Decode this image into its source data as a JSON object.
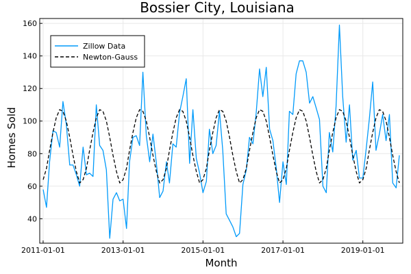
{
  "chart_data": {
    "type": "line",
    "title": "Bossier City, Louisiana",
    "xlabel": "Month",
    "ylabel": "Homes Sold",
    "x_ticks": [
      "2011-01-01",
      "2013-01-01",
      "2015-01-01",
      "2017-01-01",
      "2019-01-01"
    ],
    "y_ticks": [
      40,
      60,
      80,
      100,
      120,
      140,
      160
    ],
    "xlim": [
      "2010-12-01",
      "2020-01-01"
    ],
    "ylim": [
      25,
      163
    ],
    "grid": true,
    "legend_position": "top-left",
    "series": [
      {
        "name": "Zillow Data",
        "color": "#009AFA",
        "dash": "solid",
        "points": [
          [
            "2011-01-01",
            58
          ],
          [
            "2011-02-01",
            47
          ],
          [
            "2011-03-01",
            75
          ],
          [
            "2011-04-01",
            94
          ],
          [
            "2011-05-01",
            93
          ],
          [
            "2011-06-01",
            84
          ],
          [
            "2011-07-01",
            112
          ],
          [
            "2011-08-01",
            98
          ],
          [
            "2011-09-01",
            73
          ],
          [
            "2011-10-01",
            73
          ],
          [
            "2011-11-01",
            67
          ],
          [
            "2011-12-01",
            60
          ],
          [
            "2012-01-01",
            84
          ],
          [
            "2012-02-01",
            67
          ],
          [
            "2012-03-01",
            68
          ],
          [
            "2012-04-01",
            66
          ],
          [
            "2012-05-01",
            110
          ],
          [
            "2012-06-01",
            85
          ],
          [
            "2012-07-01",
            82
          ],
          [
            "2012-08-01",
            70
          ],
          [
            "2012-09-01",
            28
          ],
          [
            "2012-10-01",
            52
          ],
          [
            "2012-11-01",
            56
          ],
          [
            "2012-12-01",
            51
          ],
          [
            "2013-01-01",
            52
          ],
          [
            "2013-02-01",
            34
          ],
          [
            "2013-03-01",
            75
          ],
          [
            "2013-04-01",
            90
          ],
          [
            "2013-05-01",
            91
          ],
          [
            "2013-06-01",
            85
          ],
          [
            "2013-07-01",
            130
          ],
          [
            "2013-08-01",
            91
          ],
          [
            "2013-09-01",
            75
          ],
          [
            "2013-10-01",
            92
          ],
          [
            "2013-11-01",
            74
          ],
          [
            "2013-12-01",
            53
          ],
          [
            "2014-01-01",
            57
          ],
          [
            "2014-02-01",
            75
          ],
          [
            "2014-03-01",
            62
          ],
          [
            "2014-04-01",
            86
          ],
          [
            "2014-05-01",
            84
          ],
          [
            "2014-06-01",
            105
          ],
          [
            "2014-07-01",
            115
          ],
          [
            "2014-08-01",
            126
          ],
          [
            "2014-09-01",
            74
          ],
          [
            "2014-10-01",
            107
          ],
          [
            "2014-11-01",
            77
          ],
          [
            "2014-12-01",
            68
          ],
          [
            "2015-01-01",
            56
          ],
          [
            "2015-02-01",
            63
          ],
          [
            "2015-03-01",
            95
          ],
          [
            "2015-04-01",
            80
          ],
          [
            "2015-05-01",
            85
          ],
          [
            "2015-06-01",
            106
          ],
          [
            "2015-07-01",
            82
          ],
          [
            "2015-08-01",
            43
          ],
          [
            "2015-09-01",
            39
          ],
          [
            "2015-10-01",
            35
          ],
          [
            "2015-11-01",
            29
          ],
          [
            "2015-12-01",
            31
          ],
          [
            "2016-01-01",
            61
          ],
          [
            "2016-02-01",
            70
          ],
          [
            "2016-03-01",
            90
          ],
          [
            "2016-04-01",
            86
          ],
          [
            "2016-05-01",
            105
          ],
          [
            "2016-06-01",
            132
          ],
          [
            "2016-07-01",
            115
          ],
          [
            "2016-08-01",
            133
          ],
          [
            "2016-09-01",
            95
          ],
          [
            "2016-10-01",
            88
          ],
          [
            "2016-11-01",
            71
          ],
          [
            "2016-12-01",
            50
          ],
          [
            "2017-01-01",
            75
          ],
          [
            "2017-02-01",
            61
          ],
          [
            "2017-03-01",
            106
          ],
          [
            "2017-04-01",
            104
          ],
          [
            "2017-05-01",
            129
          ],
          [
            "2017-06-01",
            137
          ],
          [
            "2017-07-01",
            137
          ],
          [
            "2017-08-01",
            130
          ],
          [
            "2017-09-01",
            111
          ],
          [
            "2017-10-01",
            115
          ],
          [
            "2017-11-01",
            108
          ],
          [
            "2017-12-01",
            101
          ],
          [
            "2018-01-01",
            60
          ],
          [
            "2018-02-01",
            56
          ],
          [
            "2018-03-01",
            93
          ],
          [
            "2018-04-01",
            81
          ],
          [
            "2018-05-01",
            109
          ],
          [
            "2018-06-01",
            159
          ],
          [
            "2018-07-01",
            115
          ],
          [
            "2018-08-01",
            87
          ],
          [
            "2018-09-01",
            110
          ],
          [
            "2018-10-01",
            76
          ],
          [
            "2018-11-01",
            82
          ],
          [
            "2018-12-01",
            65
          ],
          [
            "2019-01-01",
            65
          ],
          [
            "2019-02-01",
            83
          ],
          [
            "2019-03-01",
            101
          ],
          [
            "2019-04-01",
            124
          ],
          [
            "2019-05-01",
            82
          ],
          [
            "2019-06-01",
            92
          ],
          [
            "2019-07-01",
            104
          ],
          [
            "2019-08-01",
            88
          ],
          [
            "2019-09-01",
            104
          ],
          [
            "2019-10-01",
            62
          ],
          [
            "2019-11-01",
            59
          ],
          [
            "2019-12-01",
            79
          ]
        ]
      },
      {
        "name": "Newton-Gauss",
        "color": "#000000",
        "dash": "dashed",
        "points": [
          [
            "2011-01-01",
            64
          ],
          [
            "2011-02-01",
            71
          ],
          [
            "2011-03-01",
            82
          ],
          [
            "2011-04-01",
            93
          ],
          [
            "2011-05-01",
            102
          ],
          [
            "2011-06-01",
            107
          ],
          [
            "2011-07-01",
            106
          ],
          [
            "2011-08-01",
            100
          ],
          [
            "2011-09-01",
            90
          ],
          [
            "2011-10-01",
            79
          ],
          [
            "2011-11-01",
            69
          ],
          [
            "2011-12-01",
            62
          ],
          [
            "2012-01-01",
            64
          ],
          [
            "2012-02-01",
            71
          ],
          [
            "2012-03-01",
            82
          ],
          [
            "2012-04-01",
            93
          ],
          [
            "2012-05-01",
            102
          ],
          [
            "2012-06-01",
            107
          ],
          [
            "2012-07-01",
            106
          ],
          [
            "2012-08-01",
            100
          ],
          [
            "2012-09-01",
            90
          ],
          [
            "2012-10-01",
            79
          ],
          [
            "2012-11-01",
            69
          ],
          [
            "2012-12-01",
            62
          ],
          [
            "2013-01-01",
            64
          ],
          [
            "2013-02-01",
            71
          ],
          [
            "2013-03-01",
            82
          ],
          [
            "2013-04-01",
            93
          ],
          [
            "2013-05-01",
            102
          ],
          [
            "2013-06-01",
            107
          ],
          [
            "2013-07-01",
            106
          ],
          [
            "2013-08-01",
            100
          ],
          [
            "2013-09-01",
            90
          ],
          [
            "2013-10-01",
            79
          ],
          [
            "2013-11-01",
            69
          ],
          [
            "2013-12-01",
            62
          ],
          [
            "2014-01-01",
            64
          ],
          [
            "2014-02-01",
            71
          ],
          [
            "2014-03-01",
            82
          ],
          [
            "2014-04-01",
            93
          ],
          [
            "2014-05-01",
            102
          ],
          [
            "2014-06-01",
            107
          ],
          [
            "2014-07-01",
            106
          ],
          [
            "2014-08-01",
            100
          ],
          [
            "2014-09-01",
            90
          ],
          [
            "2014-10-01",
            79
          ],
          [
            "2014-11-01",
            69
          ],
          [
            "2014-12-01",
            62
          ],
          [
            "2015-01-01",
            64
          ],
          [
            "2015-02-01",
            71
          ],
          [
            "2015-03-01",
            82
          ],
          [
            "2015-04-01",
            93
          ],
          [
            "2015-05-01",
            102
          ],
          [
            "2015-06-01",
            107
          ],
          [
            "2015-07-01",
            106
          ],
          [
            "2015-08-01",
            100
          ],
          [
            "2015-09-01",
            90
          ],
          [
            "2015-10-01",
            79
          ],
          [
            "2015-11-01",
            69
          ],
          [
            "2015-12-01",
            62
          ],
          [
            "2016-01-01",
            64
          ],
          [
            "2016-02-01",
            71
          ],
          [
            "2016-03-01",
            82
          ],
          [
            "2016-04-01",
            93
          ],
          [
            "2016-05-01",
            102
          ],
          [
            "2016-06-01",
            107
          ],
          [
            "2016-07-01",
            106
          ],
          [
            "2016-08-01",
            100
          ],
          [
            "2016-09-01",
            90
          ],
          [
            "2016-10-01",
            79
          ],
          [
            "2016-11-01",
            69
          ],
          [
            "2016-12-01",
            62
          ],
          [
            "2017-01-01",
            64
          ],
          [
            "2017-02-01",
            71
          ],
          [
            "2017-03-01",
            82
          ],
          [
            "2017-04-01",
            93
          ],
          [
            "2017-05-01",
            102
          ],
          [
            "2017-06-01",
            107
          ],
          [
            "2017-07-01",
            106
          ],
          [
            "2017-08-01",
            100
          ],
          [
            "2017-09-01",
            90
          ],
          [
            "2017-10-01",
            79
          ],
          [
            "2017-11-01",
            69
          ],
          [
            "2017-12-01",
            62
          ],
          [
            "2018-01-01",
            64
          ],
          [
            "2018-02-01",
            71
          ],
          [
            "2018-03-01",
            82
          ],
          [
            "2018-04-01",
            93
          ],
          [
            "2018-05-01",
            102
          ],
          [
            "2018-06-01",
            107
          ],
          [
            "2018-07-01",
            106
          ],
          [
            "2018-08-01",
            100
          ],
          [
            "2018-09-01",
            90
          ],
          [
            "2018-10-01",
            79
          ],
          [
            "2018-11-01",
            69
          ],
          [
            "2018-12-01",
            62
          ],
          [
            "2019-01-01",
            64
          ],
          [
            "2019-02-01",
            71
          ],
          [
            "2019-03-01",
            82
          ],
          [
            "2019-04-01",
            93
          ],
          [
            "2019-05-01",
            102
          ],
          [
            "2019-06-01",
            107
          ],
          [
            "2019-07-01",
            106
          ],
          [
            "2019-08-01",
            100
          ],
          [
            "2019-09-01",
            90
          ],
          [
            "2019-10-01",
            79
          ],
          [
            "2019-11-01",
            69
          ],
          [
            "2019-12-01",
            62
          ]
        ]
      }
    ]
  }
}
